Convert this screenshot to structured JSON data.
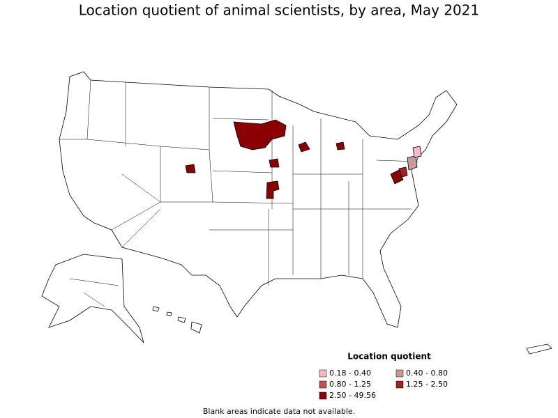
{
  "title": "Location quotient of animal scientists, by area, May 2021",
  "legend": {
    "title": "Location quotient",
    "items": [
      {
        "label": "0.18 - 0.40",
        "color": "#f7b9c6"
      },
      {
        "label": "0.40 - 0.80",
        "color": "#cc9999"
      },
      {
        "label": "0.80 - 1.25",
        "color": "#c0504d"
      },
      {
        "label": "1.25 - 2.50",
        "color": "#a31f23"
      },
      {
        "label": "2.50 - 49.56",
        "color": "#8b0000"
      }
    ]
  },
  "note": "Blank areas indicate data not available."
}
